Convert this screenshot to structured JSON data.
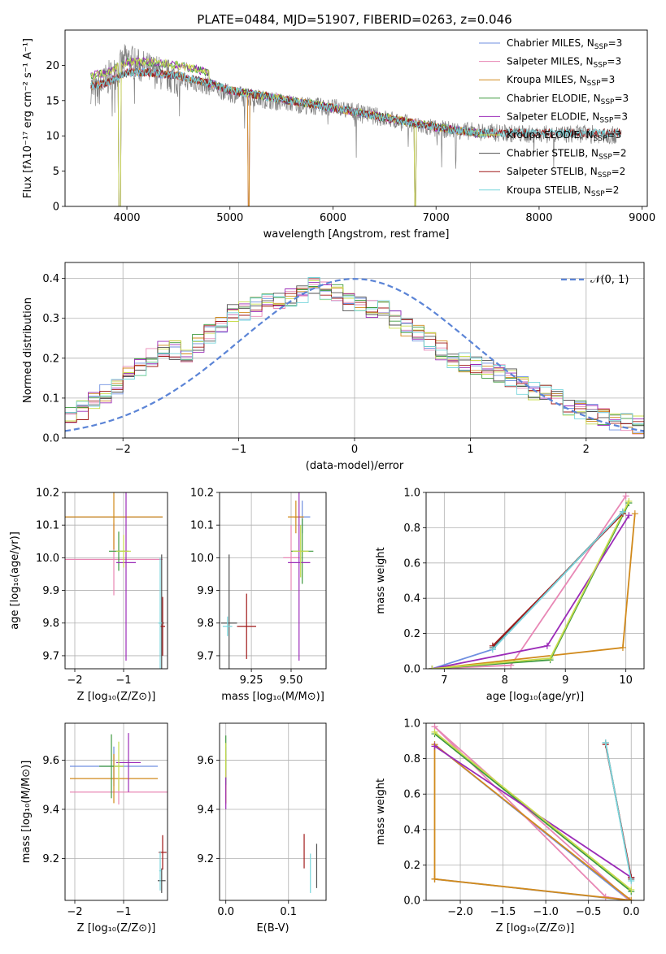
{
  "colors": {
    "Chabrier MILES": "#6f8fe0",
    "Salpeter MILES": "#e887b5",
    "Kroupa MILES": "#d18a1c",
    "Chabrier ELODIE": "#3f9a3f",
    "Salpeter ELODIE": "#9b2bb8",
    "Kroupa ELODIE": "#c8dc4c",
    "Chabrier STELIB": "#505050",
    "Salpeter STELIB": "#a01818",
    "Kroupa STELIB": "#78d6dc"
  },
  "chart_data": [
    {
      "id": "spectrum",
      "type": "line",
      "title": "PLATE=0484, MJD=51907, FIBERID=0263, z=0.046",
      "xlabel": "wavelength [Angstrom, rest frame]",
      "ylabel": "Flux [fλ10⁻¹⁷ erg cm⁻² s⁻¹ A⁻¹]",
      "xlim": [
        3400,
        9050
      ],
      "ylim": [
        0,
        25
      ],
      "xticks": [
        4000,
        5000,
        6000,
        7000,
        8000,
        9000
      ],
      "yticks": [
        0,
        5,
        10,
        15,
        20
      ],
      "grid": false,
      "legend": "top-right",
      "observed_color": "#808080",
      "observed_x": [
        3650,
        3700,
        3800,
        3900,
        4000,
        4100,
        4300,
        4500,
        4800,
        5000,
        5200,
        5500,
        5800,
        6000,
        6200,
        6500,
        6800,
        7000,
        7200,
        7500,
        7800,
        8000,
        8200,
        8400,
        8600,
        8800
      ],
      "observed_y": [
        17,
        16,
        18,
        19,
        21,
        20,
        19,
        18,
        17,
        16,
        15.5,
        14.8,
        14.2,
        14,
        13.5,
        12.5,
        11.5,
        11,
        10.8,
        10.5,
        10.3,
        10.2,
        10.2,
        10.3,
        10.2,
        10
      ],
      "model_x": [
        3650,
        3800,
        4000,
        4200,
        4500,
        4800,
        5000,
        5500,
        6000,
        6500,
        7000,
        7400
      ],
      "model_y": [
        17,
        17.5,
        19,
        19,
        18.5,
        17.5,
        16.5,
        15.2,
        14,
        12.6,
        11.2,
        10.4
      ],
      "series": [
        {
          "name": "Chabrier MILES, N_SSP=3",
          "label_text": "Chabrier MILES, N",
          "sub": "SSP",
          "eq": "=3"
        },
        {
          "name": "Salpeter MILES, N_SSP=3",
          "label_text": "Salpeter MILES, N",
          "sub": "SSP",
          "eq": "=3"
        },
        {
          "name": "Kroupa MILES, N_SSP=3",
          "label_text": "Kroupa MILES, N",
          "sub": "SSP",
          "eq": "=3"
        },
        {
          "name": "Chabrier ELODIE, N_SSP=3",
          "label_text": "Chabrier ELODIE, N",
          "sub": "SSP",
          "eq": "=3"
        },
        {
          "name": "Salpeter ELODIE, N_SSP=3",
          "label_text": "Salpeter ELODIE, N",
          "sub": "SSP",
          "eq": "=3"
        },
        {
          "name": "Kroupa ELODIE, N_SSP=3",
          "label_text": "Kroupa ELODIE, N",
          "sub": "SSP",
          "eq": "=3"
        },
        {
          "name": "Chabrier STELIB, N_SSP=2",
          "label_text": "Chabrier STELIB, N",
          "sub": "SSP",
          "eq": "=2"
        },
        {
          "name": "Salpeter STELIB, N_SSP=2",
          "label_text": "Salpeter STELIB, N",
          "sub": "SSP",
          "eq": "=2"
        },
        {
          "name": "Kroupa STELIB, N_SSP=2",
          "label_text": "Kroupa STELIB, N",
          "sub": "SSP",
          "eq": "=2"
        }
      ]
    },
    {
      "id": "residuals",
      "type": "line",
      "xlabel": "(data-model)/error",
      "ylabel": "Normed distribution",
      "xlim": [
        -2.5,
        2.5
      ],
      "ylim": [
        0,
        0.44
      ],
      "xticks": [
        -2,
        -1,
        0,
        1,
        2
      ],
      "yticks": [
        0.0,
        0.1,
        0.2,
        0.3,
        0.4
      ],
      "grid": true,
      "legend": "top-right",
      "gaussian_label": "𝒩(0, 1)",
      "gaussian_color": "#5b84d6",
      "bin_width": 0.1,
      "hist_centers": [
        -2.45,
        -2.35,
        -2.25,
        -2.15,
        -2.05,
        -1.95,
        -1.85,
        -1.75,
        -1.65,
        -1.55,
        -1.45,
        -1.35,
        -1.25,
        -1.15,
        -1.05,
        -0.95,
        -0.85,
        -0.75,
        -0.65,
        -0.55,
        -0.45,
        -0.35,
        -0.25,
        -0.15,
        -0.05,
        0.05,
        0.15,
        0.25,
        0.35,
        0.45,
        0.55,
        0.65,
        0.75,
        0.85,
        0.95,
        1.05,
        1.15,
        1.25,
        1.35,
        1.45,
        1.55,
        1.65,
        1.75,
        1.85,
        1.95,
        2.05,
        2.15,
        2.25,
        2.35,
        2.45
      ],
      "hist_values": [
        0.06,
        0.07,
        0.09,
        0.11,
        0.13,
        0.16,
        0.18,
        0.2,
        0.22,
        0.22,
        0.21,
        0.24,
        0.26,
        0.29,
        0.31,
        0.32,
        0.33,
        0.34,
        0.35,
        0.35,
        0.36,
        0.38,
        0.37,
        0.36,
        0.34,
        0.33,
        0.32,
        0.32,
        0.3,
        0.28,
        0.26,
        0.24,
        0.22,
        0.2,
        0.19,
        0.18,
        0.17,
        0.16,
        0.15,
        0.13,
        0.12,
        0.11,
        0.1,
        0.08,
        0.07,
        0.06,
        0.05,
        0.04,
        0.04,
        0.03
      ]
    },
    {
      "id": "age-vs-Z",
      "type": "scatter",
      "xlabel": "Z [log₁₀(Z/Z⊙)]",
      "ylabel": "age  [log₁₀(age/yr)]",
      "xlim": [
        -2.2,
        -0.1
      ],
      "ylim": [
        9.66,
        10.2
      ],
      "xticks": [
        -2,
        -1
      ],
      "yticks": [
        9.7,
        9.8,
        9.9,
        10.0,
        10.1,
        10.2
      ],
      "grid": true,
      "points": [
        {
          "model": "Chabrier MILES",
          "x": -1.2,
          "y": 10.125,
          "xerr": 1.0,
          "yerr": 0.0
        },
        {
          "model": "Salpeter MILES",
          "x": -1.2,
          "y": 9.995,
          "xerr": 1.0,
          "yerr": 0.11
        },
        {
          "model": "Kroupa MILES",
          "x": -1.2,
          "y": 10.125,
          "xerr": 1.0,
          "yerr": 0.1
        },
        {
          "model": "Chabrier ELODIE",
          "x": -1.1,
          "y": 10.02,
          "xerr": 0.2,
          "yerr": 0.06
        },
        {
          "model": "Salpeter ELODIE",
          "x": -0.95,
          "y": 9.985,
          "xerr": 0.2,
          "yerr": 0.3
        },
        {
          "model": "Kroupa ELODIE",
          "x": -1.0,
          "y": 10.02,
          "xerr": 0.15,
          "yerr": 0.05
        },
        {
          "model": "Chabrier STELIB",
          "x": -0.22,
          "y": 9.8,
          "xerr": 0.05,
          "yerr": 0.21
        },
        {
          "model": "Salpeter STELIB",
          "x": -0.2,
          "y": 9.79,
          "xerr": 0.05,
          "yerr": 0.09
        },
        {
          "model": "Kroupa STELIB",
          "x": -0.25,
          "y": 9.8,
          "xerr": 0.04,
          "yerr": 0.2
        }
      ]
    },
    {
      "id": "age-vs-mass",
      "type": "scatter",
      "xlabel": "mass [log₁₀(M/M⊙)]",
      "ylabel": "",
      "xlim": [
        9.05,
        9.72
      ],
      "ylim": [
        9.66,
        10.2
      ],
      "xticks": [
        9.25,
        9.5
      ],
      "xticklabels": [
        "9.25",
        "9.50"
      ],
      "yticks": [
        9.7,
        9.8,
        9.9,
        10.0,
        10.1,
        10.2
      ],
      "grid": true,
      "points": [
        {
          "model": "Chabrier MILES",
          "x": 9.57,
          "y": 10.125,
          "xerr": 0.05,
          "yerr": 0.05
        },
        {
          "model": "Salpeter MILES",
          "x": 9.5,
          "y": 10.0,
          "xerr": 0.05,
          "yerr": 0.1
        },
        {
          "model": "Kroupa MILES",
          "x": 9.53,
          "y": 10.125,
          "xerr": 0.05,
          "yerr": 0.05
        },
        {
          "model": "Chabrier ELODIE",
          "x": 9.57,
          "y": 10.02,
          "xerr": 0.07,
          "yerr": 0.1
        },
        {
          "model": "Salpeter ELODIE",
          "x": 9.55,
          "y": 9.985,
          "xerr": 0.07,
          "yerr": 0.3
        },
        {
          "model": "Kroupa ELODIE",
          "x": 9.56,
          "y": 10.02,
          "xerr": 0.05,
          "yerr": 0.08
        },
        {
          "model": "Chabrier STELIB",
          "x": 9.11,
          "y": 9.8,
          "xerr": 0.05,
          "yerr": 0.21
        },
        {
          "model": "Salpeter STELIB",
          "x": 9.22,
          "y": 9.79,
          "xerr": 0.06,
          "yerr": 0.1
        },
        {
          "model": "Kroupa STELIB",
          "x": 9.1,
          "y": 9.79,
          "xerr": 0.03,
          "yerr": 0.03
        }
      ]
    },
    {
      "id": "weight-vs-age",
      "type": "line",
      "xlabel": "age  [log₁₀(age/yr)]",
      "ylabel": "mass weight",
      "xlim": [
        6.7,
        10.3
      ],
      "ylim": [
        0,
        1
      ],
      "xticks": [
        7,
        8,
        9,
        10
      ],
      "yticks": [
        0.0,
        0.2,
        0.4,
        0.6,
        0.8,
        1.0
      ],
      "grid": true,
      "series": [
        {
          "model": "Chabrier MILES",
          "x": [
            6.8,
            7.8,
            9.95
          ],
          "y": [
            0.0,
            0.11,
            0.89
          ]
        },
        {
          "model": "Salpeter MILES",
          "x": [
            6.8,
            8.1,
            10.0
          ],
          "y": [
            0.0,
            0.02,
            0.98
          ]
        },
        {
          "model": "Kroupa MILES",
          "x": [
            6.8,
            9.95,
            10.15
          ],
          "y": [
            0.0,
            0.12,
            0.88
          ]
        },
        {
          "model": "Chabrier ELODIE",
          "x": [
            6.8,
            8.75,
            10.05
          ],
          "y": [
            0.0,
            0.05,
            0.94
          ]
        },
        {
          "model": "Salpeter ELODIE",
          "x": [
            6.8,
            8.7,
            10.05
          ],
          "y": [
            0.0,
            0.13,
            0.87
          ]
        },
        {
          "model": "Kroupa ELODIE",
          "x": [
            6.8,
            8.75,
            10.05
          ],
          "y": [
            0.0,
            0.06,
            0.95
          ]
        },
        {
          "model": "Chabrier STELIB",
          "x": [
            7.8,
            9.95
          ],
          "y": [
            0.12,
            0.89
          ]
        },
        {
          "model": "Salpeter STELIB",
          "x": [
            7.8,
            9.95
          ],
          "y": [
            0.13,
            0.88
          ]
        },
        {
          "model": "Kroupa STELIB",
          "x": [
            7.8,
            9.95
          ],
          "y": [
            0.11,
            0.89
          ]
        }
      ]
    },
    {
      "id": "mass-vs-Z",
      "type": "scatter",
      "xlabel": "Z [log₁₀(Z/Z⊙)]",
      "ylabel": "mass [log₁₀(M/M⊙)]",
      "xlim": [
        -2.2,
        -0.1
      ],
      "ylim": [
        9.03,
        9.75
      ],
      "xticks": [
        -2,
        -1
      ],
      "yticks": [
        9.2,
        9.4,
        9.6
      ],
      "grid": true,
      "points": [
        {
          "model": "Chabrier MILES",
          "x": -1.2,
          "y": 9.575,
          "xerr": 0.9,
          "yerr": 0.08
        },
        {
          "model": "Salpeter MILES",
          "x": -1.1,
          "y": 9.47,
          "xerr": 1.0,
          "yerr": 0.05
        },
        {
          "model": "Kroupa MILES",
          "x": -1.2,
          "y": 9.525,
          "xerr": 0.9,
          "yerr": 0.1
        },
        {
          "model": "Chabrier ELODIE",
          "x": -1.25,
          "y": 9.575,
          "xerr": 0.25,
          "yerr": 0.13
        },
        {
          "model": "Salpeter ELODIE",
          "x": -0.9,
          "y": 9.59,
          "xerr": 0.25,
          "yerr": 0.12
        },
        {
          "model": "Kroupa ELODIE",
          "x": -1.1,
          "y": 9.575,
          "xerr": 0.1,
          "yerr": 0.1
        },
        {
          "model": "Chabrier STELIB",
          "x": -0.22,
          "y": 9.11,
          "xerr": 0.08,
          "yerr": 0.05
        },
        {
          "model": "Salpeter STELIB",
          "x": -0.2,
          "y": 9.225,
          "xerr": 0.08,
          "yerr": 0.07
        },
        {
          "model": "Kroupa STELIB",
          "x": -0.25,
          "y": 9.15,
          "xerr": 0.02,
          "yerr": 0.08
        }
      ]
    },
    {
      "id": "mass-vs-EBV",
      "type": "scatter",
      "xlabel": "E(B-V)",
      "ylabel": "",
      "xlim": [
        -0.01,
        0.16
      ],
      "ylim": [
        9.03,
        9.75
      ],
      "xticks": [
        0.0,
        0.1
      ],
      "xticklabels": [
        "0.0",
        "0.1"
      ],
      "yticks": [
        9.2,
        9.4,
        9.6
      ],
      "grid": true,
      "points": [
        {
          "model": "Chabrier MILES",
          "x": 0.0,
          "y": 9.575,
          "xerr": 0,
          "yerr": 0.08
        },
        {
          "model": "Salpeter MILES",
          "x": 0.0,
          "y": 9.47,
          "xerr": 0,
          "yerr": 0.05
        },
        {
          "model": "Kroupa MILES",
          "x": 0.0,
          "y": 9.525,
          "xerr": 0,
          "yerr": 0.1
        },
        {
          "model": "Chabrier ELODIE",
          "x": 0.0,
          "y": 9.6,
          "xerr": 0,
          "yerr": 0.1
        },
        {
          "model": "Salpeter ELODIE",
          "x": 0.0,
          "y": 9.48,
          "xerr": 0,
          "yerr": 0.08
        },
        {
          "model": "Kroupa ELODIE",
          "x": 0.0,
          "y": 9.6,
          "xerr": 0,
          "yerr": 0.07
        },
        {
          "model": "Chabrier STELIB",
          "x": 0.145,
          "y": 9.17,
          "xerr": 0,
          "yerr": 0.09
        },
        {
          "model": "Salpeter STELIB",
          "x": 0.125,
          "y": 9.23,
          "xerr": 0,
          "yerr": 0.07
        },
        {
          "model": "Kroupa STELIB",
          "x": 0.135,
          "y": 9.14,
          "xerr": 0,
          "yerr": 0.08
        }
      ]
    },
    {
      "id": "weight-vs-Z",
      "type": "line",
      "xlabel": "Z [log₁₀(Z/Z⊙)]",
      "ylabel": "mass weight",
      "xlim": [
        -2.4,
        0.15
      ],
      "ylim": [
        0,
        1
      ],
      "xticks": [
        -2.0,
        -1.5,
        -1.0,
        -0.5,
        0.0
      ],
      "xticklabels": [
        "−2.0",
        "−1.5",
        "−1.0",
        "−0.5",
        "0.0"
      ],
      "yticks": [
        0.0,
        0.2,
        0.4,
        0.6,
        0.8,
        1.0
      ],
      "grid": true,
      "series": [
        {
          "model": "Chabrier MILES",
          "x": [
            -2.3,
            -0.02,
            -2.3
          ],
          "y": [
            0.12,
            0.0,
            0.88
          ]
        },
        {
          "model": "Salpeter MILES",
          "x": [
            -2.3,
            -0.3,
            -0.02,
            -2.3
          ],
          "y": [
            0.98,
            0.02,
            0.0,
            0.98
          ]
        },
        {
          "model": "Kroupa MILES",
          "x": [
            -2.3,
            0.0,
            -2.3,
            -2.3
          ],
          "y": [
            0.12,
            0.0,
            0.88,
            0.12
          ]
        },
        {
          "model": "Chabrier ELODIE",
          "x": [
            -2.3,
            0.0
          ],
          "y": [
            0.94,
            0.05
          ]
        },
        {
          "model": "Salpeter ELODIE",
          "x": [
            -2.3,
            0.0
          ],
          "y": [
            0.87,
            0.13
          ]
        },
        {
          "model": "Kroupa ELODIE",
          "x": [
            -2.3,
            0.0
          ],
          "y": [
            0.95,
            0.06
          ]
        },
        {
          "model": "Chabrier STELIB",
          "x": [
            -0.3,
            0.0
          ],
          "y": [
            0.89,
            0.12
          ]
        },
        {
          "model": "Salpeter STELIB",
          "x": [
            -0.3,
            0.0
          ],
          "y": [
            0.88,
            0.13
          ]
        },
        {
          "model": "Kroupa STELIB",
          "x": [
            -0.3,
            0.0
          ],
          "y": [
            0.89,
            0.11
          ]
        }
      ]
    }
  ]
}
